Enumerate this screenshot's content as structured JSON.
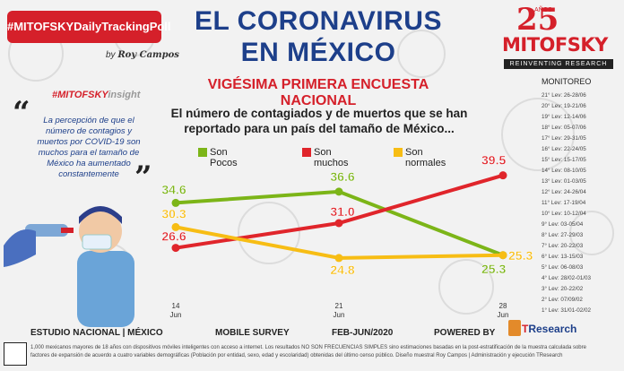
{
  "header": {
    "badge": "#MITOFSKYDailyTrackingPoll",
    "by_label": "by",
    "by_name": "Roy Campos",
    "title_line1": "EL CORONAVIRUS",
    "title_line2": "EN MÉXICO",
    "subtitle": "VIGÉSIMA PRIMERA ENCUESTA NACIONAL"
  },
  "logo": {
    "years": "25",
    "anos": "AÑOS",
    "name": "MITOFSKY",
    "tagline": "REINVENTING RESEARCH"
  },
  "insight": {
    "tag_prefix": "#MITOFSKY",
    "tag_suffix": "insight",
    "open_quote": "“",
    "close_quote": "”",
    "text": "La percepción de que el número de contagios y muertos por COVID-19 son muchos para el tamaño de México ha aumentado constantemente"
  },
  "question": "El número de contagiados y de muertos que se han reportado para un país del tamaño de México...",
  "monitoreo": {
    "title": "MONITOREO",
    "items": [
      "21° Lev: 26-28/06",
      "20° Lev: 19-21/06",
      "19° Lev: 12-14/06",
      "18° Lev: 05-07/06",
      "17° Lev: 29-31/05",
      "16° Lev: 22-24/05",
      "15° Lev: 15-17/05",
      "14° Lev: 08-10/05",
      "13° Lev: 01-03/05",
      "12° Lev: 24-26/04",
      "11° Lev: 17-19/04",
      "10° Lev: 10-12/04",
      "9° Lev: 03-05/04",
      "8° Lev: 27-29/03",
      "7° Lev: 20-22/03",
      "6° Lev: 13-15/03",
      "5° Lev: 06-08/03",
      "4° Lev: 28/02-01/03",
      "3° Lev: 20-22/02",
      "2° Lev: 07/09/02",
      "1° Lev: 31/01-02/02"
    ]
  },
  "chart_data": {
    "type": "line",
    "title": "El número de contagiados y de muertos que se han reportado para un país del tamaño de México...",
    "categories": [
      "14 Jun",
      "21 Jun",
      "28 Jun"
    ],
    "category_day": [
      "14",
      "21",
      "28"
    ],
    "category_month": [
      "Jun",
      "Jun",
      "Jun"
    ],
    "ylim": [
      20,
      42
    ],
    "legend_position": "top",
    "series": [
      {
        "name": "Son Pocos",
        "name_line1": "Son",
        "name_line2": "Pocos",
        "color": "#7cb518",
        "values": [
          34.6,
          36.6,
          25.3
        ],
        "labels": [
          "34.6",
          "36.6",
          "25.3"
        ]
      },
      {
        "name": "Son muchos",
        "name_line1": "Son",
        "name_line2": "muchos",
        "color": "#e0252b",
        "values": [
          26.6,
          31.0,
          39.5
        ],
        "labels": [
          "26.6",
          "31.0",
          "39.5"
        ]
      },
      {
        "name": "Son normales",
        "name_line1": "Son",
        "name_line2": "normales",
        "color": "#f7bd14",
        "values": [
          30.3,
          24.8,
          25.3
        ],
        "labels": [
          "30.3",
          "24.8",
          "25.3"
        ]
      }
    ]
  },
  "footer": {
    "estudio": "ESTUDIO NACIONAL | MÉXICO",
    "survey": "MOBILE SURVEY",
    "dates": "FEB-JUN/2020",
    "powered": "POWERED BY",
    "tresearch_t": "T",
    "tresearch_rest": "Research",
    "note": "1,000 mexicanos mayores de 18 años con dispositivos móviles inteligentes con acceso a internet. Los resultados NO SON FRECUENCIAS SIMPLES sino estimaciones basadas en la post-estratificación de la muestra calculada sobre factores de expansión de acuerdo a cuatro variables demográficas (Población por entidad, sexo, edad y escolaridad) obtenidas del último censo público. Diseño muestral Roy Campos | Administración y ejecución TResearch"
  }
}
